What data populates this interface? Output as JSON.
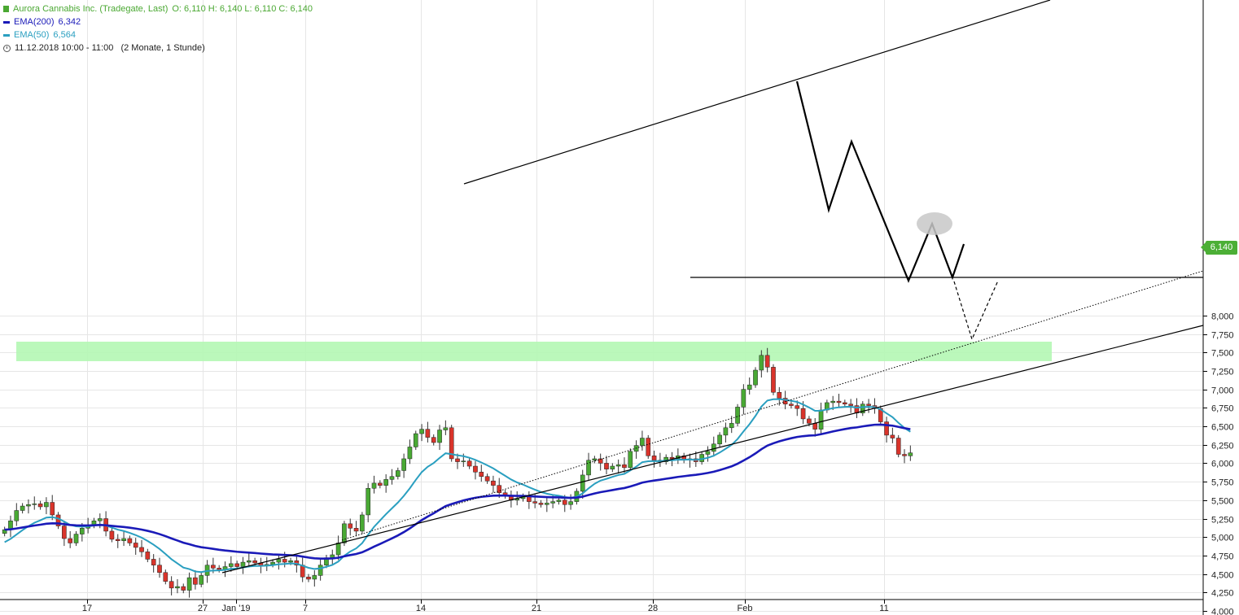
{
  "header": {
    "title": "Aurora Cannabis Inc. (Tradegate, Last)",
    "ohlc": "O: 6,110  H: 6,140  L: 6,110  C: 6,140",
    "ema200_label": "EMA(200)",
    "ema200_value": "6,342",
    "ema50_label": "EMA(50)",
    "ema50_value": "6,564",
    "time_range": "11.12.2018 10:00 - 11:00   (2 Monate, 1 Stunde)"
  },
  "last_price_tag": "6,140",
  "colors": {
    "up": "#49a934",
    "down": "#d9342b",
    "ema200": "#1a1ab8",
    "ema50": "#2a9fc0",
    "support_zone": "#b4f7b4",
    "last_tag": "#4caf36"
  },
  "chart_data": {
    "type": "candlestick",
    "instrument": "Aurora Cannabis Inc. (Tradegate, Last)",
    "interval": "1 Stunde",
    "ylim": [
      4.0,
      8.1
    ],
    "y_ticks": [
      "4,000",
      "4,250",
      "4,500",
      "4,750",
      "5,000",
      "5,250",
      "5,500",
      "5,750",
      "6,000",
      "6,250",
      "6,500",
      "6,750",
      "7,000",
      "7,250",
      "7,500",
      "7,750",
      "8,000"
    ],
    "x_ticks": [
      "17",
      "27",
      "Jan '19",
      "7",
      "14",
      "21",
      "28",
      "Feb",
      "11"
    ],
    "grid": true,
    "y_axis_position": "right",
    "closes": [
      5.1,
      5.22,
      5.36,
      5.42,
      5.44,
      5.45,
      5.41,
      5.47,
      5.3,
      5.15,
      4.98,
      4.92,
      5.04,
      5.12,
      5.16,
      5.22,
      5.25,
      5.08,
      4.97,
      4.95,
      4.98,
      4.92,
      4.86,
      4.8,
      4.7,
      4.62,
      4.52,
      4.4,
      4.31,
      4.33,
      4.28,
      4.45,
      4.36,
      4.48,
      4.62,
      4.58,
      4.56,
      4.6,
      4.64,
      4.6,
      4.66,
      4.68,
      4.65,
      4.61,
      4.63,
      4.66,
      4.7,
      4.66,
      4.68,
      4.62,
      4.46,
      4.43,
      4.48,
      4.62,
      4.72,
      4.76,
      4.92,
      5.18,
      5.12,
      5.08,
      5.3,
      5.66,
      5.73,
      5.7,
      5.78,
      5.82,
      5.9,
      6.06,
      6.22,
      6.4,
      6.46,
      6.35,
      6.28,
      6.45,
      6.48,
      6.06,
      6.02,
      6.03,
      5.96,
      5.88,
      5.82,
      5.76,
      5.7,
      5.6,
      5.56,
      5.5,
      5.52,
      5.55,
      5.48,
      5.46,
      5.44,
      5.46,
      5.48,
      5.5,
      5.44,
      5.48,
      5.62,
      5.84,
      6.04,
      6.06,
      6.0,
      5.92,
      5.96,
      5.98,
      5.94,
      6.16,
      6.24,
      6.34,
      6.1,
      6.04,
      6.02,
      6.08,
      6.06,
      6.1,
      6.04,
      6.06,
      6.02,
      6.12,
      6.16,
      6.26,
      6.38,
      6.48,
      6.54,
      6.76,
      7.0,
      7.06,
      7.26,
      7.46,
      7.3,
      6.96,
      6.88,
      6.8,
      6.78,
      6.74,
      6.6,
      6.54,
      6.46,
      6.72,
      6.82,
      6.84,
      6.82,
      6.8,
      6.78,
      6.68,
      6.8,
      6.78,
      6.74,
      6.56,
      6.38,
      6.34,
      6.12,
      6.1,
      6.14
    ],
    "series": [
      {
        "name": "EMA(200)",
        "last": 6.342
      },
      {
        "name": "EMA(50)",
        "last": 6.564
      }
    ],
    "last": 6.14
  }
}
